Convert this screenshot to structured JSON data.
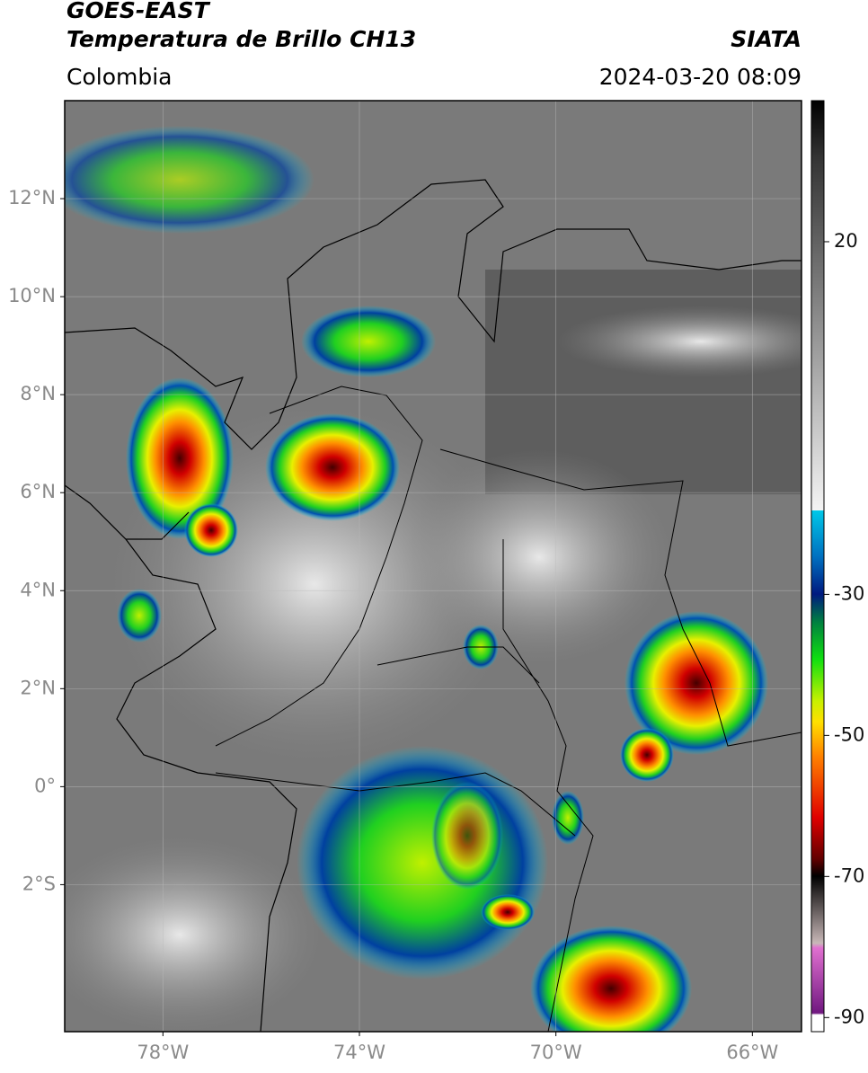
{
  "header": {
    "title": "GOES-EAST",
    "subtitle": "Temperatura de Brillo CH13",
    "source": "SIATA",
    "region": "Colombia",
    "datetime": "2024-03-20 08:09"
  },
  "map": {
    "xlim": [
      -80,
      -65
    ],
    "ylim": [
      -5,
      14
    ],
    "xticks": [
      {
        "value": -78,
        "label": "78°W"
      },
      {
        "value": -74,
        "label": "74°W"
      },
      {
        "value": -70,
        "label": "70°W"
      },
      {
        "value": -66,
        "label": "66°W"
      }
    ],
    "yticks": [
      {
        "value": 12,
        "label": "12°N"
      },
      {
        "value": 10,
        "label": "10°N"
      },
      {
        "value": 8,
        "label": "8°N"
      },
      {
        "value": 6,
        "label": "6°N"
      },
      {
        "value": 4,
        "label": "4°N"
      },
      {
        "value": 2,
        "label": "2°N"
      },
      {
        "value": 0,
        "label": "0°"
      },
      {
        "value": -2,
        "label": "2°S"
      }
    ],
    "grid": true
  },
  "colorbar": {
    "lim": [
      -92,
      40
    ],
    "ticks": [
      20,
      -30,
      -50,
      -70,
      -90
    ]
  }
}
